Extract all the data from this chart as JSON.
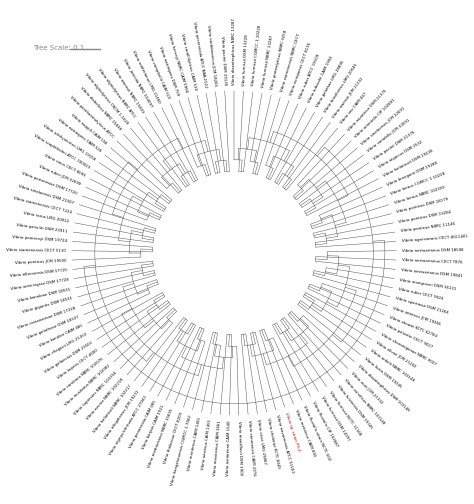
{
  "title": "Tree Scale: 0.1",
  "highlighted_taxon": "Vibrio sp. strain PS-4",
  "highlighted_color": "#cc0000",
  "background_color": "#ffffff",
  "line_color": "#555555",
  "label_fontsize": 2.8,
  "scale_fontsize": 5.0,
  "all_taxa": [
    "Vibrio diazotrophicus NBRC 13287",
    "Vibrio furnissii DSM 13228",
    "Vibrio furnissii CGMCC 1.10228",
    "Vibrio furnissii NBRC 13287",
    "Vibrio proteolyticus NBRC 9258",
    "Vibrio xiamenensis NBRC CECT",
    "Vibrio europaeus CECT 8136",
    "Vibrio ruber ATCC 19109",
    "Vibrio tubiashii CAIM 1904",
    "Vibrio galathae LMG 28895",
    "Vibrio brasiliensis LMG 20546",
    "Vibrio owensii JCM 21332",
    "Vibrio xeu CAIM 467",
    "Vibrio aquaticus DSM 21376",
    "Vibrio orientalis CIP 102891",
    "Vibrio sinaloensis JCM 32691",
    "Vibrio variabilis JCM 32691",
    "Vibrio pacinii DSM 21376",
    "Vibrio atypicus DSM 2532",
    "Vibrio halioticoli DSM 19228",
    "Vibrio breoganii DSM 19288",
    "Vibrio lentus CGMCC 1.10228",
    "Vibrio lentus NBRC 102359",
    "Vibrio ponticus DSM 18179",
    "Vibrio ponticus DSM 13284",
    "Vibrio ponticus NBRC 11146",
    "Vibrio agarivorans CECT 4611441",
    "Vibrio aestuarianus DSM 18598",
    "Vibrio aestuarianus CECT T876",
    "Vibrio aestuarianus DSM 19841",
    "Vibrio mangrovei DSM 16131",
    "Vibrio ruber CECT 9026",
    "Vibrio spartinae DSM 21264",
    "Vibrio intemus JCM 19456",
    "Vibrio zhuwei KCTC 62784",
    "Vibrio palustre CECT 9027",
    "Vibrio choroteganae NBRC 9027",
    "Vibrio olivae JCM 21262",
    "Vibrio ordalii NBRC 103148",
    "Vibrio fortis DSM 19345",
    "Vibrio diazotrophicus DSM 103148",
    "Vibrio ouei JCM 21332",
    "Vibrio vulnificus NBRC 103148",
    "Vibrio fulviensis DSM 19345",
    "Vibrio furnissii NCTC 11168",
    "Vibrio furnissii DSM 14397",
    "Vibrio fluvialis CIP 102687",
    "Vibrio fluvialis strain NCTC 602",
    "Vibrio metoicus CAIM 892",
    "Vibrio sp. strain PS-4",
    "Vibrio navarrensis ATCC 51183",
    "Vibrio cholerae KCTC 8645",
    "Vibrio cicici LMG 29867",
    "Vibrio sonorensis CAIM 1076",
    "Vibrio mansflavii DSM 1900",
    "Vibrio asriarenae CAIM 1540",
    "Vibrio mexicanus CAIM 1661",
    "Vibrio aestivus CAIM 1455",
    "Vibrio maritimus CAIM 1455",
    "Vibrio hangzhouensis CGMCC 1.7062",
    "Vibrio thalassae CECT 8203",
    "Vibrio mediterranei NBRC 15635",
    "Vibrio barjaei CAIM 1921",
    "Vibrio penaeicida CAIM 285",
    "Vibrio nigripulchritudo ATCC 27043",
    "Vibrio ishigakensis JCM 19231",
    "Vibrio halioticoli NBRC 102217",
    "Vibrio ezurae NBRC 102218",
    "Vibrio superstes NBRC 103154",
    "Vibrio inusitatus NBRC 102082",
    "Vibrio comitans NBRC 102076",
    "Vibrio tapetis CECT 4600",
    "Vibrio gallaecius DSM 23502",
    "Vibrio chagasii LMG 21353",
    "Vibrio kanaloe CAIM 485",
    "Vibrio galatheae DSM 18537",
    "Vibrio crassostreae DSM 17228",
    "Vibrio gigantis DSM 18531",
    "Vibrio kanaloae DSM 18531",
    "Vibrio areninigrae DSM 17728",
    "Vibrio alfacsensis DSM 17725",
    "Vibrio ponticus JCM 19500",
    "Vibrio xiamenensis CECT 5110",
    "Vibrio pomeroyi DSM 19724",
    "Vibrio panuliri DSM 23911",
    "Vibrio rarus LMG 20912",
    "Vibrio xiamenensis CECT 7224",
    "Vibrio sinaloensis DSM 21507",
    "Vibrio porteresiae DSM 17720",
    "Vibrio ruber JCM 32699",
    "Vibrio sinus CECT 8093",
    "Vibrio scophthalmi ATCC 700023",
    "Vibrio ichthyoenteri LMG 19158",
    "Vibrio natriegens CAIM 526",
    "Vibrio nappili CAIM 558",
    "Vibrio parahaemolyticus ATCC",
    "Vibrio diabolicus NBRC 15838",
    "Vibrio alginolyticus CNCM 1-1629",
    "Vibrio alginolyticus NBRC ATCC",
    "Vibrio owensii NBRC 15839",
    "Vibrio jasicida NBRC 104097",
    "Vibrio rotiferianus LMG 21460",
    "Vibrio campbellii CAIM 519",
    "Vibrio natriegens DSM 759",
    "Vibrio harveyi NBRC CAIM 1964",
    "Vibrio coralliilyticus CAIM 530",
    "Vibrio pectenicida ATCC BAA-2122",
    "Vibrio caribbeanicus JCM 18265",
    "Vibrio pacinii DSM 19139"
  ]
}
